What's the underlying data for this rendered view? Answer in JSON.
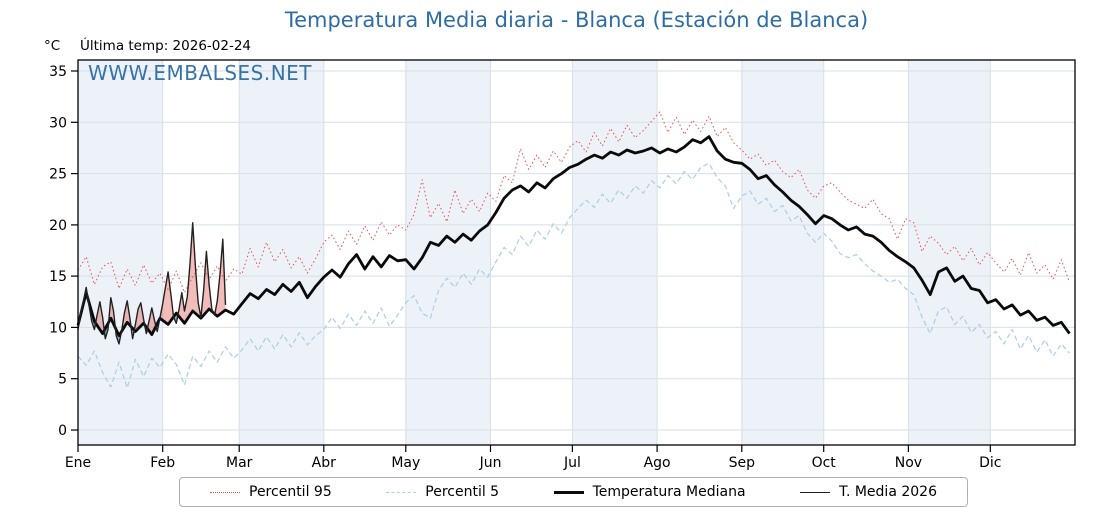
{
  "title": "Temperatura Media diaria - Blanca (Estación de Blanca)",
  "annotations": {
    "last_temp_label": "Última temp: 2026-02-24",
    "watermark": "WWW.EMBALSES.NET"
  },
  "y_axis": {
    "unit_label": "°C",
    "ticks": [
      0,
      5,
      10,
      15,
      20,
      25,
      30,
      35
    ]
  },
  "x_axis": {
    "months": [
      "Ene",
      "Feb",
      "Mar",
      "Abr",
      "May",
      "Jun",
      "Jul",
      "Ago",
      "Sep",
      "Oct",
      "Nov",
      "Dic"
    ],
    "days_in_month": [
      31,
      28,
      31,
      30,
      31,
      30,
      31,
      31,
      30,
      31,
      30,
      31
    ]
  },
  "legend": {
    "items": [
      {
        "label": "Percentil 95",
        "style": "dotted",
        "color": "#e4524e"
      },
      {
        "label": "Percentil 5",
        "style": "dashed",
        "color": "#a8cfe2"
      },
      {
        "label": "Temperatura Mediana",
        "style": "solid-thick",
        "color": "#0a0a0a"
      },
      {
        "label": "T. Media 2026",
        "style": "solid-thin",
        "color": "#222222"
      }
    ]
  },
  "colors": {
    "band": "#edf2f8",
    "grid": "#d7dfe8",
    "frame": "#000000",
    "title_blue": "#2e6da4",
    "fill_above": "rgba(222,96,90,0.42)",
    "fill_below": "rgba(80,115,150,0.55)"
  },
  "chart_data": {
    "type": "line",
    "title": "Temperatura Media diaria - Blanca (Estación de Blanca)",
    "ylabel": "°C",
    "ylim": [
      -1.5,
      36.1
    ],
    "x_unit": "day_of_year",
    "grid": true,
    "legend_position": "bottom",
    "series": [
      {
        "name": "Percentil 95",
        "color": "#e4524e",
        "style": "dotted",
        "width": 1,
        "day_step": 3,
        "start_day": 0,
        "values": [
          15.6,
          16.9,
          14.2,
          15.9,
          16.4,
          13.8,
          15.7,
          14.1,
          16.1,
          14.3,
          15.3,
          13.7,
          15.5,
          13.4,
          14.9,
          16.3,
          14.7,
          16.0,
          14.5,
          15.7,
          15.2,
          17.7,
          15.9,
          18.3,
          16.4,
          17.6,
          15.8,
          16.9,
          15.3,
          16.7,
          18.3,
          19.0,
          17.6,
          19.4,
          18.1,
          19.9,
          18.5,
          20.3,
          19.0,
          20.0,
          19.5,
          21.0,
          24.4,
          20.7,
          22.1,
          20.3,
          23.4,
          21.1,
          22.5,
          21.3,
          23.1,
          22.3,
          24.8,
          24.1,
          27.4,
          25.4,
          26.8,
          25.6,
          27.2,
          26.1,
          27.6,
          28.2,
          27.1,
          29.0,
          27.7,
          29.4,
          28.1,
          29.7,
          28.5,
          29.2,
          30.1,
          31.0,
          29.0,
          30.5,
          28.8,
          30.2,
          29.1,
          30.6,
          28.6,
          29.5,
          28.0,
          27.3,
          26.4,
          26.9,
          25.8,
          26.3,
          25.2,
          24.6,
          25.4,
          23.4,
          22.6,
          23.8,
          24.1,
          23.2,
          22.4,
          22.0,
          21.6,
          22.5,
          21.1,
          20.6,
          18.6,
          20.6,
          20.2,
          17.4,
          18.9,
          18.2,
          17.1,
          17.9,
          16.5,
          17.7,
          16.1,
          17.3,
          16.3,
          15.4,
          16.7,
          15.1,
          17.3,
          15.3,
          16.1,
          14.7,
          16.6,
          14.4
        ]
      },
      {
        "name": "Percentil 5",
        "color": "#a8cfe2",
        "style": "dashed",
        "width": 1.2,
        "day_step": 3,
        "start_day": 0,
        "values": [
          7.2,
          6.3,
          7.7,
          5.6,
          4.2,
          6.6,
          4.1,
          6.9,
          5.2,
          7.0,
          6.1,
          7.4,
          6.4,
          4.4,
          7.2,
          6.2,
          7.7,
          6.6,
          8.1,
          7.0,
          7.8,
          8.9,
          7.7,
          9.1,
          7.9,
          9.3,
          8.1,
          9.5,
          8.3,
          9.2,
          9.8,
          11.0,
          9.9,
          11.3,
          10.2,
          11.6,
          10.4,
          11.9,
          10.1,
          11.2,
          12.4,
          13.1,
          11.4,
          10.9,
          13.6,
          14.8,
          13.9,
          15.3,
          14.2,
          15.7,
          14.9,
          16.4,
          17.8,
          17.1,
          18.9,
          17.9,
          19.5,
          18.6,
          20.1,
          19.2,
          20.7,
          21.6,
          22.4,
          21.7,
          23.0,
          22.1,
          23.4,
          22.6,
          23.8,
          23.1,
          24.3,
          23.6,
          24.8,
          24.0,
          25.2,
          24.4,
          25.6,
          26.0,
          24.6,
          23.8,
          21.6,
          22.8,
          23.3,
          22.0,
          22.6,
          21.3,
          21.9,
          20.4,
          20.9,
          19.2,
          18.3,
          19.2,
          18.4,
          17.2,
          16.8,
          17.1,
          16.2,
          15.5,
          15.0,
          14.4,
          14.7,
          13.8,
          13.2,
          11.0,
          9.4,
          11.6,
          12.0,
          10.3,
          11.1,
          9.5,
          10.3,
          9.0,
          9.6,
          8.4,
          9.8,
          7.9,
          9.2,
          7.6,
          8.8,
          7.2,
          8.4,
          7.5
        ]
      },
      {
        "name": "Temperatura Mediana",
        "color": "#0a0a0a",
        "style": "solid",
        "width": 2.8,
        "day_step": 3,
        "start_day": 0,
        "values": [
          10.2,
          13.4,
          10.6,
          9.4,
          10.9,
          9.2,
          10.5,
          9.6,
          10.4,
          9.3,
          10.9,
          10.3,
          11.4,
          10.4,
          11.6,
          10.9,
          11.8,
          11.1,
          11.7,
          11.3,
          12.3,
          13.3,
          12.8,
          13.7,
          13.2,
          14.2,
          13.5,
          14.4,
          12.9,
          14.0,
          14.9,
          15.6,
          14.9,
          16.2,
          17.1,
          15.7,
          16.9,
          15.9,
          17.0,
          16.5,
          16.6,
          15.7,
          16.8,
          18.3,
          18.0,
          18.9,
          18.3,
          19.1,
          18.5,
          19.4,
          20.0,
          21.2,
          22.6,
          23.4,
          23.8,
          23.2,
          24.1,
          23.6,
          24.5,
          25.0,
          25.6,
          25.9,
          26.4,
          26.8,
          26.5,
          27.1,
          26.8,
          27.3,
          27.0,
          27.2,
          27.5,
          27.0,
          27.4,
          27.1,
          27.6,
          28.3,
          28.0,
          28.6,
          27.2,
          26.4,
          26.1,
          26.0,
          25.4,
          24.5,
          24.8,
          23.9,
          23.2,
          22.4,
          21.8,
          21.0,
          20.1,
          20.9,
          20.6,
          20.0,
          19.5,
          19.8,
          19.1,
          18.9,
          18.3,
          17.5,
          16.9,
          16.4,
          15.8,
          14.6,
          13.2,
          15.4,
          15.8,
          14.5,
          15.0,
          13.8,
          13.6,
          12.4,
          12.7,
          11.8,
          12.2,
          11.2,
          11.6,
          10.7,
          11.0,
          10.2,
          10.5,
          9.4
        ]
      },
      {
        "name": "T. Media 2026",
        "color": "#222222",
        "style": "solid",
        "width": 1.4,
        "day_step": 1,
        "start_day": 0,
        "values": [
          9.8,
          11.5,
          12.6,
          13.9,
          12.2,
          10.6,
          9.8,
          11.2,
          12.5,
          11.0,
          8.9,
          9.8,
          12.9,
          11.6,
          9.2,
          8.4,
          9.7,
          11.4,
          12.6,
          10.9,
          8.9,
          10.3,
          11.8,
          12.4,
          10.8,
          9.4,
          10.6,
          11.9,
          10.7,
          9.6,
          10.9,
          12.3,
          13.9,
          15.4,
          13.2,
          11.0,
          10.4,
          11.8,
          13.4,
          11.6,
          13.0,
          16.2,
          20.2,
          15.8,
          12.4,
          11.0,
          13.6,
          17.4,
          14.2,
          11.8,
          11.2,
          12.6,
          15.2,
          18.6,
          12.2
        ]
      }
    ],
    "fills": {
      "above": {
        "name": "2026 above mediana",
        "color": "rgba(222,96,90,0.42)"
      },
      "below": {
        "name": "2026 below mediana",
        "color": "rgba(80,115,150,0.55)"
      }
    }
  }
}
